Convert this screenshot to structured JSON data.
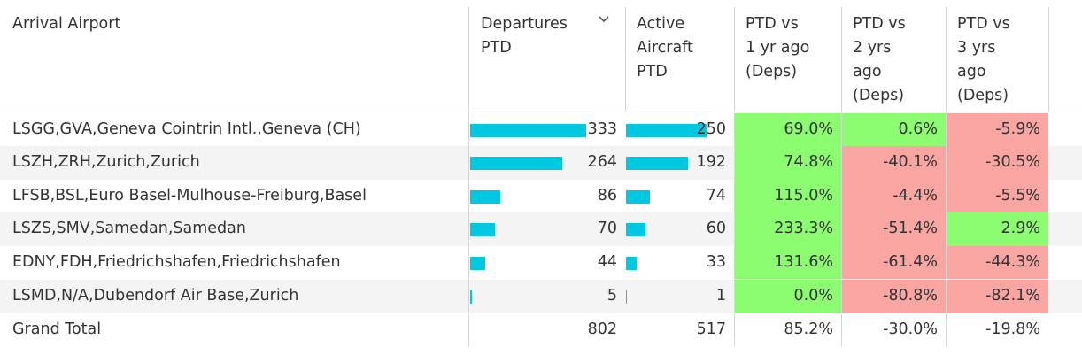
{
  "columns": {
    "arrival_airport": "Arrival Airport",
    "departures": [
      "Departures",
      "PTD"
    ],
    "active_aircraft": [
      "Active",
      "Aircraft",
      "PTD"
    ],
    "vs1": [
      "PTD vs",
      "1 yr ago",
      "(Deps)"
    ],
    "vs2": [
      "PTD vs",
      "2 yrs",
      "ago",
      "(Deps)"
    ],
    "vs3": [
      "PTD vs",
      "3 yrs",
      "ago",
      "(Deps)"
    ]
  },
  "sort_icon": "chevron-down-icon",
  "colors": {
    "bar": "#00c8e0",
    "positive": "#8cfc70",
    "negative": "#f9a6a3"
  },
  "rows": [
    {
      "airport": "LSGG,GVA,Geneva Cointrin Intl.,Geneva (CH)",
      "departures": "333",
      "departures_value": 333,
      "aircraft": "250",
      "aircraft_value": 250,
      "vs1": "69.0%",
      "vs1_sign": "pos",
      "vs2": "0.6%",
      "vs2_sign": "pos",
      "vs3": "-5.9%",
      "vs3_sign": "neg"
    },
    {
      "airport": "LSZH,ZRH,Zurich,Zurich",
      "departures": "264",
      "departures_value": 264,
      "aircraft": "192",
      "aircraft_value": 192,
      "vs1": "74.8%",
      "vs1_sign": "pos",
      "vs2": "-40.1%",
      "vs2_sign": "neg",
      "vs3": "-30.5%",
      "vs3_sign": "neg"
    },
    {
      "airport": "LFSB,BSL,Euro Basel-Mulhouse-Freiburg,Basel",
      "departures": "86",
      "departures_value": 86,
      "aircraft": "74",
      "aircraft_value": 74,
      "vs1": "115.0%",
      "vs1_sign": "pos",
      "vs2": "-4.4%",
      "vs2_sign": "neg",
      "vs3": "-5.5%",
      "vs3_sign": "neg"
    },
    {
      "airport": "LSZS,SMV,Samedan,Samedan",
      "departures": "70",
      "departures_value": 70,
      "aircraft": "60",
      "aircraft_value": 60,
      "vs1": "233.3%",
      "vs1_sign": "pos",
      "vs2": "-51.4%",
      "vs2_sign": "neg",
      "vs3": "2.9%",
      "vs3_sign": "pos"
    },
    {
      "airport": "EDNY,FDH,Friedrichshafen,Friedrichshafen",
      "departures": "44",
      "departures_value": 44,
      "aircraft": "33",
      "aircraft_value": 33,
      "vs1": "131.6%",
      "vs1_sign": "pos",
      "vs2": "-61.4%",
      "vs2_sign": "neg",
      "vs3": "-44.3%",
      "vs3_sign": "neg"
    },
    {
      "airport": "LSMD,N/A,Dubendorf Air Base,Zurich",
      "departures": "5",
      "departures_value": 5,
      "aircraft": "1",
      "aircraft_value": 1,
      "vs1": "0.0%",
      "vs1_sign": "pos",
      "vs2": "-80.8%",
      "vs2_sign": "neg",
      "vs3": "-82.1%",
      "vs3_sign": "neg"
    }
  ],
  "grand_total": {
    "label": "Grand Total",
    "departures": "802",
    "aircraft": "517",
    "vs1": "85.2%",
    "vs2": "-30.0%",
    "vs3": "-19.8%"
  }
}
